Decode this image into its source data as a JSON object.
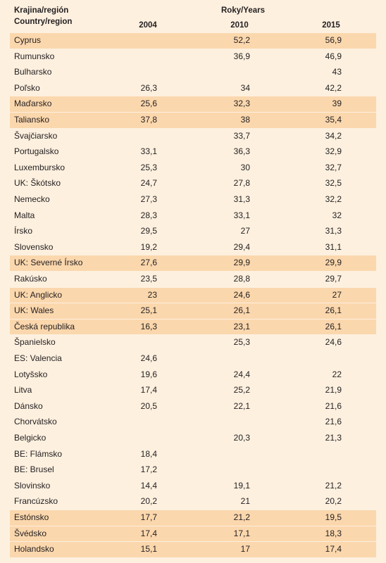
{
  "header": {
    "country_label": "Krajina/región",
    "country_label_en": "Country/region",
    "years_label": "Roky/Years",
    "years": [
      "2004",
      "2010",
      "2015"
    ]
  },
  "table": {
    "rows": [
      [
        "Cyprus",
        null,
        "52,2",
        "56,9"
      ],
      [
        "Rumunsko",
        null,
        "36,9",
        "46,9"
      ],
      [
        "Bulharsko",
        null,
        null,
        "43"
      ],
      [
        "Poľsko",
        "26,3",
        "34",
        "42,2"
      ],
      [
        "Maďarsko",
        "25,6",
        "32,3",
        "39"
      ],
      [
        "Taliansko",
        "37,8",
        "38",
        "35,4"
      ],
      [
        "Švajčiarsko",
        null,
        "33,7",
        "34,2"
      ],
      [
        "Portugalsko",
        "33,1",
        "36,3",
        "32,9"
      ],
      [
        "Luxembursko",
        "25,3",
        "30",
        "32,7"
      ],
      [
        "UK: Škótsko",
        "24,7",
        "27,8",
        "32,5"
      ],
      [
        "Nemecko",
        "27,3",
        "31,3",
        "32,2"
      ],
      [
        "Malta",
        "28,3",
        "33,1",
        "32"
      ],
      [
        "Írsko",
        "29,5",
        "27",
        "31,3"
      ],
      [
        "Slovensko",
        "19,2",
        "29,4",
        "31,1"
      ],
      [
        "UK: Severné Írsko",
        "27,6",
        "29,9",
        "29,9"
      ],
      [
        "Rakúsko",
        "23,5",
        "28,8",
        "29,7"
      ],
      [
        "UK: Anglicko",
        "23",
        "24,6",
        "27"
      ],
      [
        "UK: Wales",
        "25,1",
        "26,1",
        "26,1"
      ],
      [
        "Česká republika",
        "16,3",
        "23,1",
        "26,1"
      ],
      [
        "Španielsko",
        null,
        "25,3",
        "24,6"
      ],
      [
        "ES: Valencia",
        "24,6",
        null,
        null
      ],
      [
        "Lotyšsko",
        "19,6",
        "24,4",
        "22"
      ],
      [
        "Litva",
        "17,4",
        "25,2",
        "21,9"
      ],
      [
        "Dánsko",
        "20,5",
        "22,1",
        "21,6"
      ],
      [
        "Chorvátsko",
        null,
        null,
        "21,6"
      ],
      [
        "Belgicko",
        null,
        "20,3",
        "21,3"
      ],
      [
        "BE: Flámsko",
        "18,4",
        null,
        null
      ],
      [
        "BE: Brusel",
        "17,2",
        null,
        null
      ],
      [
        "Slovinsko",
        "14,4",
        "19,1",
        "21,2"
      ],
      [
        "Francúzsko",
        "20,2",
        "21",
        "20,2"
      ],
      [
        "Estónsko",
        "17,7",
        "21,2",
        "19,5"
      ],
      [
        "Švédsko",
        "17,4",
        "17,1",
        "18,3"
      ],
      [
        "Holandsko",
        "15,1",
        "17",
        "17,4"
      ]
    ]
  }
}
